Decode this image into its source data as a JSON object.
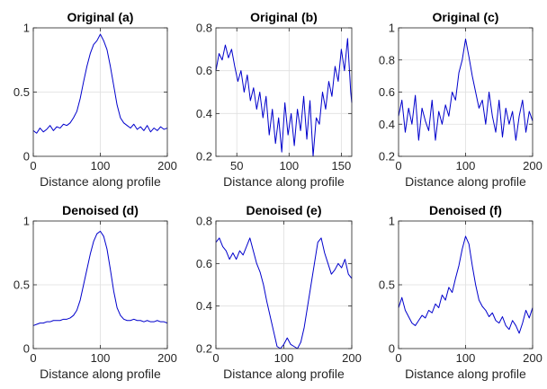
{
  "chart_data": [
    {
      "type": "line",
      "title": "Original (a)",
      "xlabel": "Distance along profile",
      "ylabel": "",
      "xlim": [
        0,
        200
      ],
      "ylim": [
        0,
        1
      ],
      "xticks": [
        0,
        100,
        200
      ],
      "yticks": [
        0,
        0.5,
        1
      ],
      "xtick_labels": [
        "0",
        "100",
        "200"
      ],
      "ytick_labels": [
        "0",
        "0.5",
        "1"
      ],
      "grid": true,
      "color": "#0000cc",
      "series": [
        {
          "x": [
            0,
            5,
            10,
            15,
            20,
            25,
            30,
            35,
            40,
            45,
            50,
            55,
            60,
            65,
            70,
            75,
            80,
            85,
            90,
            95,
            100,
            105,
            110,
            115,
            120,
            125,
            130,
            135,
            140,
            145,
            150,
            155,
            160,
            165,
            170,
            175,
            180,
            185,
            190,
            195,
            200
          ],
          "y": [
            0.2,
            0.18,
            0.22,
            0.19,
            0.21,
            0.24,
            0.2,
            0.23,
            0.22,
            0.25,
            0.24,
            0.26,
            0.3,
            0.35,
            0.45,
            0.58,
            0.7,
            0.8,
            0.87,
            0.9,
            0.95,
            0.9,
            0.83,
            0.7,
            0.55,
            0.4,
            0.3,
            0.26,
            0.24,
            0.22,
            0.25,
            0.21,
            0.23,
            0.2,
            0.24,
            0.19,
            0.22,
            0.2,
            0.23,
            0.21,
            0.22
          ]
        }
      ]
    },
    {
      "type": "line",
      "title": "Original (b)",
      "xlabel": "Distance along profile",
      "ylabel": "",
      "xlim": [
        30,
        160
      ],
      "ylim": [
        0.2,
        0.8
      ],
      "xticks": [
        50,
        100,
        150
      ],
      "yticks": [
        0.2,
        0.4,
        0.6,
        0.8
      ],
      "xtick_labels": [
        "50",
        "100",
        "150"
      ],
      "ytick_labels": [
        "0.2",
        "0.4",
        "0.6",
        "0.8"
      ],
      "grid": true,
      "color": "#0000cc",
      "series": [
        {
          "x": [
            30,
            33,
            36,
            39,
            42,
            45,
            48,
            51,
            54,
            57,
            60,
            63,
            66,
            69,
            72,
            75,
            78,
            81,
            84,
            87,
            90,
            93,
            96,
            99,
            102,
            105,
            108,
            111,
            114,
            117,
            120,
            123,
            126,
            129,
            132,
            135,
            138,
            141,
            144,
            147,
            150,
            153,
            156,
            159,
            160
          ],
          "y": [
            0.6,
            0.68,
            0.65,
            0.72,
            0.66,
            0.7,
            0.62,
            0.55,
            0.6,
            0.5,
            0.58,
            0.46,
            0.52,
            0.42,
            0.5,
            0.38,
            0.48,
            0.3,
            0.42,
            0.26,
            0.38,
            0.22,
            0.45,
            0.3,
            0.4,
            0.25,
            0.42,
            0.32,
            0.48,
            0.28,
            0.46,
            0.2,
            0.38,
            0.35,
            0.5,
            0.42,
            0.55,
            0.48,
            0.62,
            0.55,
            0.7,
            0.6,
            0.75,
            0.5,
            0.45
          ]
        }
      ]
    },
    {
      "type": "line",
      "title": "Original (c)",
      "xlabel": "Distance along profile",
      "ylabel": "",
      "xlim": [
        0,
        200
      ],
      "ylim": [
        0.2,
        1
      ],
      "xticks": [
        0,
        100,
        200
      ],
      "yticks": [
        0.2,
        0.4,
        0.6,
        0.8,
        1
      ],
      "xtick_labels": [
        "0",
        "100",
        "200"
      ],
      "ytick_labels": [
        "0.2",
        "0.4",
        "0.6",
        "0.8",
        "1"
      ],
      "grid": true,
      "color": "#0000cc",
      "series": [
        {
          "x": [
            0,
            5,
            10,
            15,
            20,
            25,
            30,
            35,
            40,
            45,
            50,
            55,
            60,
            65,
            70,
            75,
            80,
            85,
            90,
            95,
            100,
            105,
            110,
            115,
            120,
            125,
            130,
            135,
            140,
            145,
            150,
            155,
            160,
            165,
            170,
            175,
            180,
            185,
            190,
            195,
            200
          ],
          "y": [
            0.45,
            0.55,
            0.35,
            0.5,
            0.4,
            0.58,
            0.3,
            0.5,
            0.42,
            0.36,
            0.55,
            0.3,
            0.48,
            0.4,
            0.52,
            0.45,
            0.6,
            0.55,
            0.72,
            0.8,
            0.93,
            0.82,
            0.7,
            0.6,
            0.5,
            0.55,
            0.4,
            0.6,
            0.45,
            0.35,
            0.55,
            0.32,
            0.5,
            0.4,
            0.48,
            0.3,
            0.45,
            0.55,
            0.35,
            0.48,
            0.42
          ]
        }
      ]
    },
    {
      "type": "line",
      "title": "Denoised (d)",
      "xlabel": "Distance along profile",
      "ylabel": "",
      "xlim": [
        0,
        200
      ],
      "ylim": [
        0,
        1
      ],
      "xticks": [
        0,
        100,
        200
      ],
      "yticks": [
        0,
        0.5,
        1
      ],
      "xtick_labels": [
        "0",
        "100",
        "200"
      ],
      "ytick_labels": [
        "0",
        "0.5",
        "1"
      ],
      "grid": true,
      "color": "#0000cc",
      "series": [
        {
          "x": [
            0,
            5,
            10,
            15,
            20,
            25,
            30,
            35,
            40,
            45,
            50,
            55,
            60,
            65,
            70,
            75,
            80,
            85,
            90,
            95,
            100,
            105,
            110,
            115,
            120,
            125,
            130,
            135,
            140,
            145,
            150,
            155,
            160,
            165,
            170,
            175,
            180,
            185,
            190,
            195,
            200
          ],
          "y": [
            0.18,
            0.19,
            0.2,
            0.2,
            0.21,
            0.21,
            0.22,
            0.22,
            0.22,
            0.23,
            0.23,
            0.24,
            0.26,
            0.3,
            0.38,
            0.5,
            0.62,
            0.74,
            0.84,
            0.9,
            0.92,
            0.88,
            0.78,
            0.62,
            0.45,
            0.32,
            0.26,
            0.23,
            0.22,
            0.22,
            0.23,
            0.22,
            0.22,
            0.21,
            0.22,
            0.21,
            0.21,
            0.22,
            0.21,
            0.21,
            0.2
          ]
        }
      ]
    },
    {
      "type": "line",
      "title": "Denoised (e)",
      "xlabel": "Distance along profile",
      "ylabel": "",
      "xlim": [
        0,
        200
      ],
      "ylim": [
        0.2,
        0.8
      ],
      "xticks": [
        0,
        100,
        200
      ],
      "yticks": [
        0.2,
        0.4,
        0.6,
        0.8
      ],
      "xtick_labels": [
        "0",
        "100",
        "200"
      ],
      "ytick_labels": [
        "0.2",
        "0.4",
        "0.6",
        "0.8"
      ],
      "grid": true,
      "color": "#0000cc",
      "series": [
        {
          "x": [
            0,
            5,
            10,
            15,
            20,
            25,
            30,
            35,
            40,
            45,
            50,
            55,
            60,
            65,
            70,
            75,
            80,
            85,
            90,
            95,
            100,
            105,
            110,
            115,
            120,
            125,
            130,
            135,
            140,
            145,
            150,
            155,
            160,
            165,
            170,
            175,
            180,
            185,
            190,
            195,
            200
          ],
          "y": [
            0.7,
            0.72,
            0.68,
            0.66,
            0.62,
            0.65,
            0.62,
            0.66,
            0.64,
            0.68,
            0.72,
            0.66,
            0.6,
            0.56,
            0.5,
            0.42,
            0.35,
            0.28,
            0.21,
            0.2,
            0.22,
            0.25,
            0.22,
            0.21,
            0.2,
            0.23,
            0.3,
            0.4,
            0.5,
            0.6,
            0.7,
            0.72,
            0.65,
            0.6,
            0.55,
            0.57,
            0.6,
            0.58,
            0.62,
            0.55,
            0.53
          ]
        }
      ]
    },
    {
      "type": "line",
      "title": "Denoised (f)",
      "xlabel": "Distance along profile",
      "ylabel": "",
      "xlim": [
        0,
        200
      ],
      "ylim": [
        0,
        1
      ],
      "xticks": [
        0,
        100,
        200
      ],
      "yticks": [
        0,
        0.5,
        1
      ],
      "xtick_labels": [
        "0",
        "100",
        "200"
      ],
      "ytick_labels": [
        "0",
        "0.5",
        "1"
      ],
      "grid": true,
      "color": "#0000cc",
      "series": [
        {
          "x": [
            0,
            5,
            10,
            15,
            20,
            25,
            30,
            35,
            40,
            45,
            50,
            55,
            60,
            65,
            70,
            75,
            80,
            85,
            90,
            95,
            100,
            105,
            110,
            115,
            120,
            125,
            130,
            135,
            140,
            145,
            150,
            155,
            160,
            165,
            170,
            175,
            180,
            185,
            190,
            195,
            200
          ],
          "y": [
            0.32,
            0.4,
            0.3,
            0.25,
            0.2,
            0.18,
            0.22,
            0.26,
            0.24,
            0.3,
            0.28,
            0.35,
            0.32,
            0.42,
            0.38,
            0.48,
            0.44,
            0.55,
            0.65,
            0.78,
            0.88,
            0.82,
            0.65,
            0.5,
            0.38,
            0.33,
            0.3,
            0.25,
            0.28,
            0.22,
            0.2,
            0.25,
            0.18,
            0.15,
            0.22,
            0.18,
            0.12,
            0.2,
            0.3,
            0.24,
            0.32
          ]
        }
      ]
    }
  ]
}
